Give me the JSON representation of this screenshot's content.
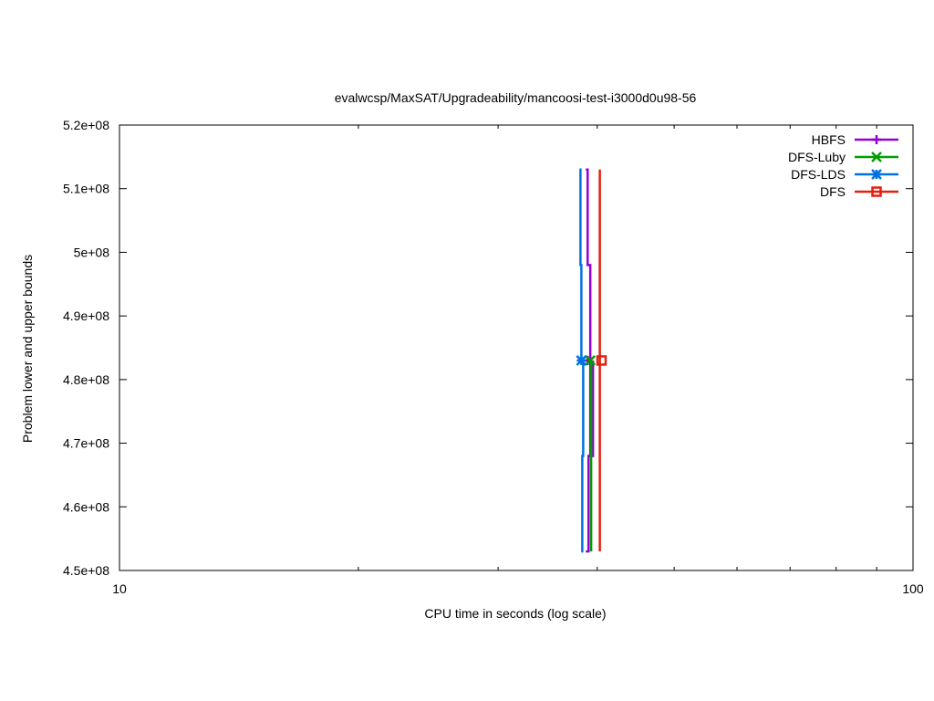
{
  "chart_data": {
    "type": "line",
    "title": "evalwcsp/MaxSAT/Upgradeability/mancoosi-test-i3000d0u98-56",
    "xlabel": "CPU time in seconds (log scale)",
    "ylabel": "Problem lower and upper bounds",
    "xscale": "log",
    "xlim": [
      10,
      100
    ],
    "ylim": [
      450000000,
      520000000
    ],
    "x_ticks": [
      {
        "value": 10,
        "label": "10"
      },
      {
        "value": 100,
        "label": "100"
      }
    ],
    "y_ticks": [
      {
        "value": 450000000,
        "label": "4.5e+08"
      },
      {
        "value": 460000000,
        "label": "4.6e+08"
      },
      {
        "value": 470000000,
        "label": "4.7e+08"
      },
      {
        "value": 480000000,
        "label": "4.8e+08"
      },
      {
        "value": 490000000,
        "label": "4.9e+08"
      },
      {
        "value": 500000000,
        "label": "5e+08"
      },
      {
        "value": 510000000,
        "label": "5.1e+08"
      },
      {
        "value": 520000000,
        "label": "5.2e+08"
      }
    ],
    "grid": false,
    "legend_position": "top-right",
    "series": [
      {
        "name": "HBFS",
        "color": "#9400d3",
        "marker": "plus",
        "upper": [
          [
            38.7,
            513000000
          ],
          [
            38.9,
            498000000
          ],
          [
            39.2,
            468000000
          ],
          [
            39.5,
            483000000
          ]
        ],
        "lower": [
          [
            38.7,
            453000000
          ],
          [
            39.0,
            468000000
          ],
          [
            39.5,
            483000000
          ]
        ],
        "marker_points": [
          [
            38.9,
            483000000
          ]
        ]
      },
      {
        "name": "DFS-Luby",
        "color": "#009e00",
        "marker": "x",
        "upper": [
          [
            39.0,
            483000000
          ]
        ],
        "lower": [
          [
            39.3,
            453000000
          ],
          [
            39.3,
            483000000
          ]
        ],
        "marker_points": [
          [
            39.2,
            483000000
          ]
        ]
      },
      {
        "name": "DFS-LDS",
        "color": "#0072e0",
        "marker": "star",
        "upper": [
          [
            38.0,
            513000000
          ],
          [
            38.1,
            498000000
          ],
          [
            38.2,
            483000000
          ]
        ],
        "lower": [
          [
            38.2,
            453000000
          ],
          [
            38.3,
            468000000
          ],
          [
            38.4,
            483000000
          ]
        ],
        "marker_points": [
          [
            38.2,
            483000000
          ]
        ]
      },
      {
        "name": "DFS",
        "color": "#e51e10",
        "marker": "box",
        "upper": [
          [
            40.3,
            513000000
          ],
          [
            40.3,
            483000000
          ]
        ],
        "lower": [
          [
            40.3,
            453000000
          ],
          [
            40.3,
            483000000
          ]
        ],
        "marker_points": [
          [
            40.5,
            483000000
          ]
        ]
      }
    ]
  }
}
